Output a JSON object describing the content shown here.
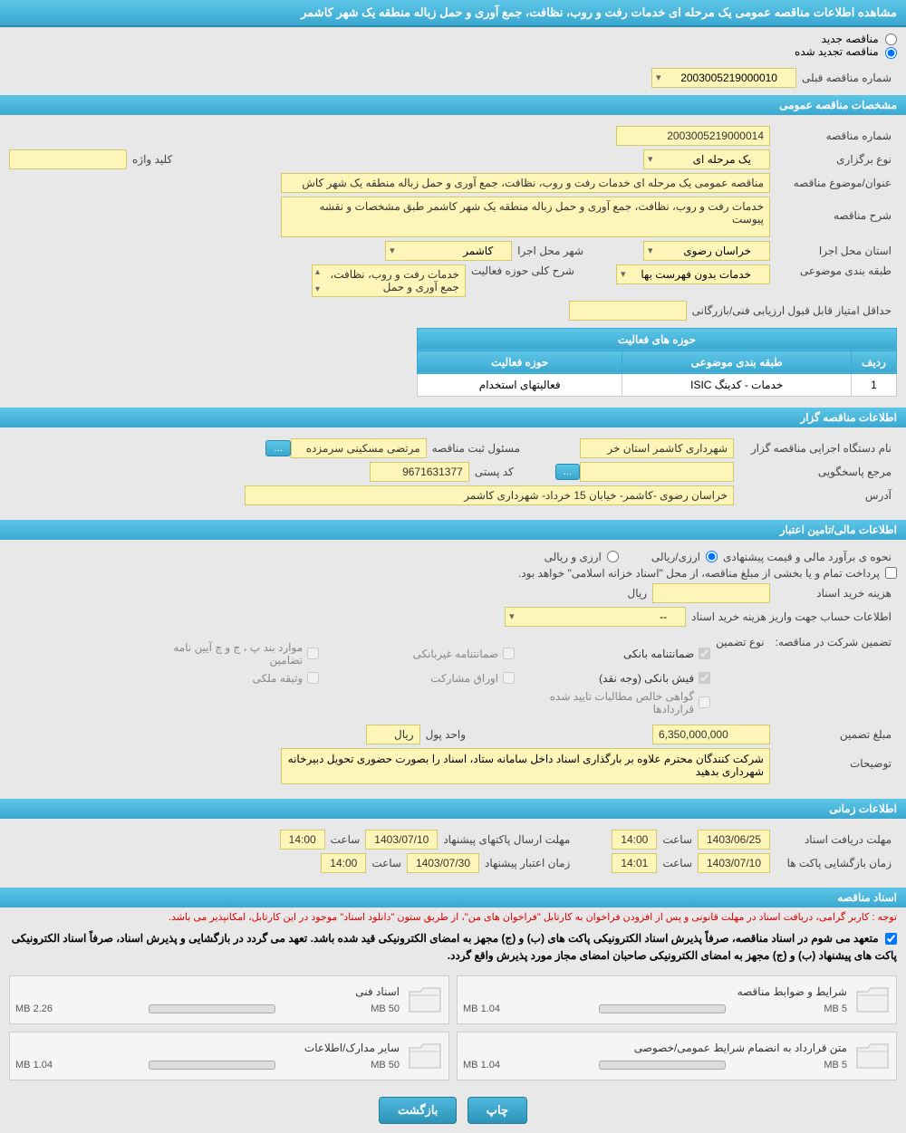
{
  "header": {
    "title": "مشاهده اطلاعات مناقصه عمومی یک مرحله ای خدمات رفت و روب، نظافت، جمع آوری و حمل زباله منطقه یک شهر کاشمر"
  },
  "tender_type": {
    "new_label": "مناقصه جدید",
    "renewed_label": "مناقصه تجدید شده"
  },
  "prev_tender": {
    "label": "شماره مناقصه قبلی",
    "value": "2003005219000010"
  },
  "sections": {
    "general": "مشخصات مناقصه عمومی",
    "organizer": "اطلاعات مناقصه گزار",
    "financial": "اطلاعات مالی/تامین اعتبار",
    "timing": "اطلاعات زمانی",
    "documents": "اسناد مناقصه"
  },
  "general": {
    "tender_no_label": "شماره مناقصه",
    "tender_no": "2003005219000014",
    "type_label": "نوع برگزاری",
    "type": "یک مرحله ای",
    "keyword_label": "کلید واژه",
    "keyword": "",
    "subject_label": "عنوان/موضوع مناقصه",
    "subject": "مناقصه عمومی یک مرحله ای خدمات رفت و روب، نظافت، جمع آوری و حمل زباله منطقه یک شهر کاش",
    "desc_label": "شرح مناقصه",
    "desc": "خدمات رفت و روب، نظافت، جمع آوری و حمل زباله منطقه یک شهر کاشمر طبق مشخصات و نقشه پیوست",
    "province_label": "استان محل اجرا",
    "province": "خراسان رضوی",
    "city_label": "شهر محل اجرا",
    "city": "کاشمر",
    "category_label": "طبقه بندی موضوعی",
    "category": "خدمات بدون فهرست بها",
    "scope_label": "شرح کلی حوزه فعالیت",
    "scope": "خدمات رفت و روب، نظافت، جمع آوری و حمل",
    "min_score_label": "حداقل امتیاز قابل قبول ارزیابی فنی/بازرگانی",
    "min_score": ""
  },
  "activities_table": {
    "title": "حوزه های فعالیت",
    "col_row": "ردیف",
    "col_category": "طبقه بندی موضوعی",
    "col_scope": "حوزه فعالیت",
    "rows": [
      {
        "idx": "1",
        "category": "خدمات - کدینگ ISIC",
        "scope": "فعالیتهای استخدام"
      }
    ]
  },
  "organizer": {
    "agency_label": "نام دستگاه اجرایی مناقصه گزار",
    "agency": "شهرداری کاشمر استان خر",
    "registrar_label": "مسئول ثبت مناقصه",
    "registrar": "مرتضی مسکینی سرمزده",
    "more_btn": "...",
    "contact_label": "مرجع پاسخگویی",
    "postal_label": "کد پستی",
    "postal": "9671631377",
    "address_label": "آدرس",
    "address": "خراسان رضوی -کاشمر- خیابان 15 خرداد- شهرداری کاشمر"
  },
  "financial": {
    "estimate_label": "نحوه ی برآورد مالی و قیمت پیشنهادی",
    "currency_radio": "ارزی/ریالی",
    "currency2_radio": "ارزی و ریالی",
    "treasury_note": "پرداخت تمام و یا بخشی از مبلغ مناقصه، از محل \"اسناد خزانه اسلامی\" خواهد بود.",
    "cost_label": "هزینه خرید اسناد",
    "cost_unit": "ریال",
    "account_label": "اطلاعات حساب جهت واریز هزینه خرید اسناد",
    "account_value": "--",
    "guarantee_label": "تضمین شرکت در مناقصه:",
    "guarantee_type_label": "نوع تضمین",
    "g_bank": "ضمانتنامه بانکی",
    "g_nonbank": "ضمانتنامه غیربانکی",
    "g_clauses": "موارد بند پ ، ج و چ آیین نامه تضامین",
    "g_cash": "فیش بانکی (وجه نقد)",
    "g_bonds": "اوراق مشارکت",
    "g_property": "وثیقه ملکی",
    "g_cert": "گواهی خالص مطالبات تایید شده قراردادها",
    "amount_label": "مبلغ تضمین",
    "amount": "6,350,000,000",
    "unit_label": "واحد پول",
    "unit": "ریال",
    "notes_label": "توضیحات",
    "notes": "شرکت کنندگان محترم علاوه بر بارگذاری اسناد داخل سامانه ستاد، اسناد را بصورت حضوری تحویل دبیرخانه شهرداری بدهید"
  },
  "timing": {
    "receive_label": "مهلت دریافت اسناد",
    "receive_date": "1403/06/25",
    "time_label": "ساعت",
    "receive_time": "14:00",
    "send_label": "مهلت ارسال پاکتهای پیشنهاد",
    "send_date": "1403/07/10",
    "send_time": "14:00",
    "open_label": "زمان بازگشایی پاکت ها",
    "open_date": "1403/07/10",
    "open_time": "14:01",
    "validity_label": "زمان اعتبار پیشنهاد",
    "validity_date": "1403/07/30",
    "validity_time": "14:00"
  },
  "documents": {
    "notice1": "توجه : کاربر گرامی، دریافت اسناد در مهلت قانونی و پس از افزودن فراخوان به کارتابل \"فراخوان های من\"، از طریق ستون \"دانلود اسناد\" موجود در این کارتابل، امکانپذیر می باشد.",
    "notice2_prefix": "متعهد می شوم در اسناد مناقصه، صرفاً پذیرش اسناد الکترونیکی پاکت های (ب) و (ج) مجهز به امضای الکترونیکی قید شده باشد. تعهد می گردد در بازگشایی و پذیرش اسناد، صرفاً اسناد الکترونیکی پاکت های پیشنهاد (ب) و (ج) مجهز به امضای الکترونیکی صاحبان امضای مجاز مورد پذیرش واقع گردد.",
    "files": [
      {
        "title": "شرایط و ضوابط مناقصه",
        "size": "1.04 MB",
        "max": "5 MB",
        "fill": 20
      },
      {
        "title": "اسناد فنی",
        "size": "2.26 MB",
        "max": "50 MB",
        "fill": 6
      },
      {
        "title": "متن قرارداد به انضمام شرایط عمومی/خصوصی",
        "size": "1.04 MB",
        "max": "5 MB",
        "fill": 20
      },
      {
        "title": "سایر مدارک/اطلاعات",
        "size": "1.04 MB",
        "max": "50 MB",
        "fill": 4
      }
    ]
  },
  "footer": {
    "print": "چاپ",
    "back": "بازگشت"
  }
}
